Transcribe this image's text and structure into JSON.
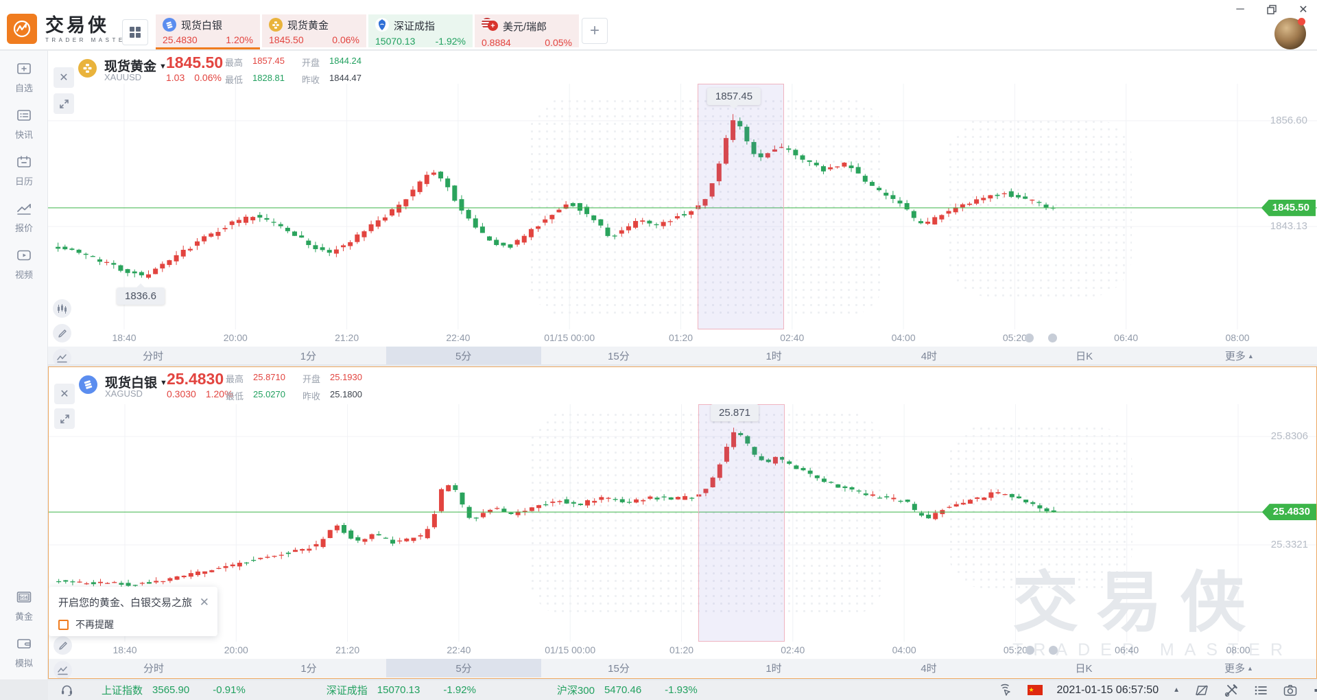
{
  "app": {
    "title": "交易侠",
    "subtitle": "TRADER MASTER"
  },
  "window_controls": {
    "minimize": "─",
    "restore": "❐",
    "close": "✕"
  },
  "top_tabs": [
    {
      "name": "现货白银",
      "price": "25.4830",
      "change": "1.20%",
      "tone": "red",
      "icon": "silver-coin-icon",
      "active": true
    },
    {
      "name": "现货黄金",
      "price": "1845.50",
      "change": "0.06%",
      "tone": "red",
      "icon": "gold-coin-icon",
      "active": false
    },
    {
      "name": "深证成指",
      "price": "15070.13",
      "change": "-1.92%",
      "tone": "green",
      "icon": "szse-icon",
      "active": false
    },
    {
      "name": "美元/瑞郎",
      "price": "0.8884",
      "change": "0.05%",
      "tone": "red",
      "icon": "usdchf-icon",
      "active": false
    }
  ],
  "add_tab_label": "+",
  "sidebar": {
    "top": [
      {
        "label": "自选",
        "icon": "watchlist-icon"
      },
      {
        "label": "快讯",
        "icon": "news-icon"
      },
      {
        "label": "日历",
        "icon": "calendar-icon"
      },
      {
        "label": "报价",
        "icon": "quotes-icon"
      },
      {
        "label": "视频",
        "icon": "video-icon"
      }
    ],
    "bottom": [
      {
        "label": "黄金",
        "icon": "sge-icon"
      },
      {
        "label": "模拟",
        "icon": "demo-icon"
      }
    ]
  },
  "gold_panel": {
    "name": "现货黄金",
    "code": "XAUUSD",
    "price": "1845.50",
    "change": "1.03",
    "change_pct": "0.06%",
    "stats": {
      "high_label": "最高",
      "high": "1857.45",
      "low_label": "最低",
      "low": "1828.81",
      "open_label": "开盘",
      "open": "1844.24",
      "prev_label": "昨收",
      "prev": "1844.47"
    }
  },
  "silver_panel": {
    "name": "现货白银",
    "code": "XAGUSD",
    "price": "25.4830",
    "change": "0.3030",
    "change_pct": "1.20%",
    "stats": {
      "high_label": "最高",
      "high": "25.8710",
      "low_label": "最低",
      "low": "25.0270",
      "open_label": "开盘",
      "open": "25.1930",
      "prev_label": "昨收",
      "prev": "25.1800"
    }
  },
  "timeframes": {
    "items": [
      "分时",
      "1分",
      "5分",
      "15分",
      "1时",
      "4时",
      "日K"
    ],
    "more": "更多",
    "selected": "5分"
  },
  "time_axis": [
    "18:40",
    "20:00",
    "21:20",
    "22:40",
    "01/15 00:00",
    "01:20",
    "02:40",
    "04:00",
    "05:20",
    "06:40",
    "08:00"
  ],
  "popup": {
    "title": "开启您的黄金、白银交易之旅",
    "checkbox_label": "不再提醒"
  },
  "watermark": {
    "text": "交易侠",
    "subtext": "TRADER MASTER"
  },
  "status_bar": {
    "indices": [
      {
        "name": "上证指数",
        "value": "3565.90",
        "change": "-0.91%"
      },
      {
        "name": "深证成指",
        "value": "15070.13",
        "change": "-1.92%"
      },
      {
        "name": "沪深300",
        "value": "5470.46",
        "change": "-1.93%"
      }
    ],
    "datetime": "2021-01-15 06:57:50"
  },
  "colors": {
    "up": "#e2443f",
    "down": "#2aa35c",
    "price_line": "#3cb549",
    "badge": "#3cb549",
    "grid": "#f0f2f5",
    "accent": "#f07c1f",
    "region_border": "#efb3c0",
    "region_fill": "rgba(122,110,212,0.11)"
  },
  "chart_data": [
    {
      "type": "candlestick",
      "symbol": "XAUUSD",
      "name": "现货黄金",
      "interval": "5min",
      "current_price": 1845.5,
      "grid_levels": [
        {
          "price": 1856.6,
          "label": "1856.60"
        },
        {
          "price": 1843.13,
          "label": "1843.13"
        }
      ],
      "annotations": [
        {
          "text": "1857.45",
          "t": 478,
          "price": 1857.45,
          "dir": "above"
        },
        {
          "text": "1836.6",
          "t": 52,
          "price": 1836.6,
          "dir": "below"
        }
      ],
      "highlight_region": {
        "t1": 452,
        "t2": 514
      },
      "t_start": -10,
      "t_end": 710,
      "waypoints": [
        [
          -10,
          1840.8
        ],
        [
          15,
          1839.5
        ],
        [
          35,
          1838.0
        ],
        [
          50,
          1837.2
        ],
        [
          55,
          1836.8
        ],
        [
          62,
          1837.4
        ],
        [
          75,
          1838.6
        ],
        [
          95,
          1841.2
        ],
        [
          115,
          1843.2
        ],
        [
          135,
          1844.4
        ],
        [
          150,
          1843.6
        ],
        [
          165,
          1842.2
        ],
        [
          178,
          1840.4
        ],
        [
          190,
          1839.9
        ],
        [
          205,
          1841.2
        ],
        [
          222,
          1843.4
        ],
        [
          240,
          1845.8
        ],
        [
          255,
          1848.6
        ],
        [
          263,
          1850.2
        ],
        [
          272,
          1849.0
        ],
        [
          282,
          1846.0
        ],
        [
          292,
          1843.4
        ],
        [
          305,
          1841.2
        ],
        [
          318,
          1840.4
        ],
        [
          332,
          1842.2
        ],
        [
          348,
          1844.6
        ],
        [
          362,
          1846.2
        ],
        [
          372,
          1845.2
        ],
        [
          382,
          1843.6
        ],
        [
          392,
          1841.8
        ],
        [
          402,
          1842.6
        ],
        [
          412,
          1844.2
        ],
        [
          422,
          1843.2
        ],
        [
          432,
          1843.8
        ],
        [
          442,
          1844.6
        ],
        [
          452,
          1845.2
        ],
        [
          460,
          1846.8
        ],
        [
          468,
          1850.0
        ],
        [
          476,
          1855.0
        ],
        [
          481,
          1857.0
        ],
        [
          486,
          1855.5
        ],
        [
          492,
          1853.0
        ],
        [
          498,
          1851.6
        ],
        [
          505,
          1852.4
        ],
        [
          512,
          1853.4
        ],
        [
          520,
          1853.0
        ],
        [
          532,
          1851.6
        ],
        [
          544,
          1850.2
        ],
        [
          552,
          1850.8
        ],
        [
          562,
          1851.2
        ],
        [
          572,
          1849.4
        ],
        [
          584,
          1847.8
        ],
        [
          596,
          1846.4
        ],
        [
          605,
          1845.2
        ],
        [
          612,
          1843.6
        ],
        [
          618,
          1843.4
        ],
        [
          626,
          1844.4
        ],
        [
          636,
          1845.0
        ],
        [
          646,
          1845.8
        ],
        [
          656,
          1846.4
        ],
        [
          666,
          1847.0
        ],
        [
          674,
          1847.4
        ],
        [
          682,
          1847.0
        ],
        [
          690,
          1846.6
        ],
        [
          698,
          1846.2
        ],
        [
          704,
          1845.8
        ],
        [
          710,
          1845.5
        ]
      ]
    },
    {
      "type": "candlestick",
      "symbol": "XAGUSD",
      "name": "现货白银",
      "interval": "5min",
      "current_price": 25.483,
      "grid_levels": [
        {
          "price": 25.8306,
          "label": "25.8306"
        },
        {
          "price": 25.3321,
          "label": "25.3321"
        }
      ],
      "annotations": [
        {
          "text": "25.871",
          "t": 478,
          "price": 25.871,
          "dir": "above"
        }
      ],
      "highlight_region": {
        "t1": 452,
        "t2": 514
      },
      "t_start": -10,
      "t_end": 710,
      "waypoints": [
        [
          -10,
          25.165
        ],
        [
          20,
          25.158
        ],
        [
          45,
          25.15
        ],
        [
          70,
          25.168
        ],
        [
          90,
          25.195
        ],
        [
          110,
          25.225
        ],
        [
          130,
          25.255
        ],
        [
          150,
          25.285
        ],
        [
          168,
          25.31
        ],
        [
          180,
          25.33
        ],
        [
          190,
          25.4
        ],
        [
          196,
          25.43
        ],
        [
          202,
          25.37
        ],
        [
          210,
          25.355
        ],
        [
          222,
          25.38
        ],
        [
          235,
          25.345
        ],
        [
          248,
          25.36
        ],
        [
          258,
          25.375
        ],
        [
          265,
          25.48
        ],
        [
          271,
          25.6
        ],
        [
          277,
          25.62
        ],
        [
          284,
          25.52
        ],
        [
          292,
          25.445
        ],
        [
          300,
          25.48
        ],
        [
          310,
          25.505
        ],
        [
          320,
          25.47
        ],
        [
          332,
          25.495
        ],
        [
          344,
          25.52
        ],
        [
          356,
          25.54
        ],
        [
          366,
          25.515
        ],
        [
          378,
          25.535
        ],
        [
          390,
          25.55
        ],
        [
          402,
          25.53
        ],
        [
          414,
          25.545
        ],
        [
          426,
          25.55
        ],
        [
          438,
          25.545
        ],
        [
          450,
          25.555
        ],
        [
          460,
          25.59
        ],
        [
          468,
          25.68
        ],
        [
          476,
          25.8
        ],
        [
          481,
          25.86
        ],
        [
          487,
          25.82
        ],
        [
          494,
          25.75
        ],
        [
          502,
          25.705
        ],
        [
          510,
          25.73
        ],
        [
          518,
          25.71
        ],
        [
          528,
          25.68
        ],
        [
          540,
          25.64
        ],
        [
          552,
          25.61
        ],
        [
          564,
          25.585
        ],
        [
          578,
          25.56
        ],
        [
          592,
          25.545
        ],
        [
          604,
          25.53
        ],
        [
          612,
          25.47
        ],
        [
          620,
          25.455
        ],
        [
          630,
          25.5
        ],
        [
          642,
          25.525
        ],
        [
          654,
          25.545
        ],
        [
          664,
          25.565
        ],
        [
          672,
          25.575
        ],
        [
          680,
          25.555
        ],
        [
          690,
          25.525
        ],
        [
          700,
          25.505
        ],
        [
          710,
          25.483
        ]
      ]
    }
  ]
}
